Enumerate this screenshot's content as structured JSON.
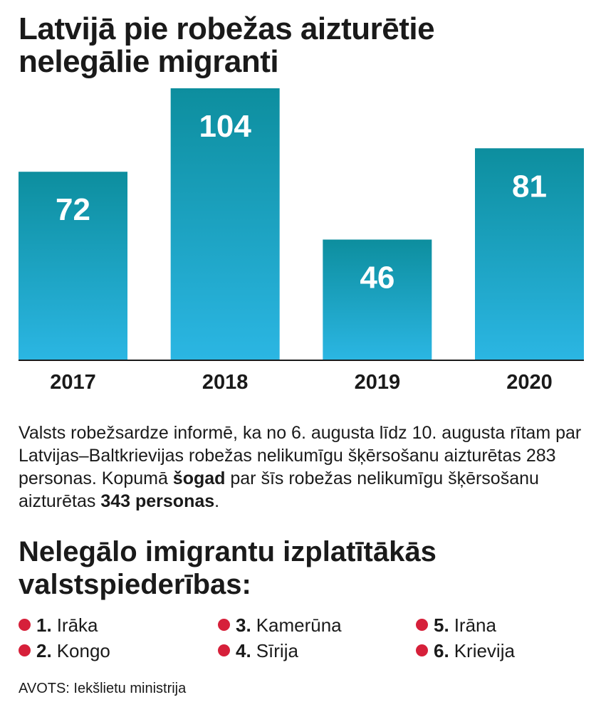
{
  "title": [
    "Latvijā pie robežas aizturētie",
    "nelegālie migranti"
  ],
  "colors": {
    "bar_top": "#0d8e9e",
    "bar_bottom": "#2bb6e3",
    "baseline": "#1a1a1a",
    "bar_label": "#ffffff",
    "dot": "#d6203a"
  },
  "chart_data": {
    "type": "bar",
    "categories": [
      "2017",
      "2018",
      "2019",
      "2020"
    ],
    "values": [
      72,
      104,
      46,
      81
    ],
    "ylim": [
      0,
      104
    ],
    "grid": false,
    "data_labels": "inside-top"
  },
  "paragraph": {
    "text_1": "Valsts robežsardze informē, ka no 6. augusta līdz 10. augusta rītam par Latvijas–Baltkrievijas robežas nelikumīgu šķērsošanu aizturētas 283 personas. Kopumā ",
    "bold_1": "šogad",
    "text_2": " par šīs robežas nelikumīgu šķērsošanu aizturētas ",
    "bold_2": "343 personas",
    "text_3": "."
  },
  "subtitle": [
    "Nelegālo imigrantu izplatītākās",
    "valstspiederības:"
  ],
  "nationalities": [
    {
      "rank": "1.",
      "name": "Irāka"
    },
    {
      "rank": "2.",
      "name": "Kongo"
    },
    {
      "rank": "3.",
      "name": "Kamerūna"
    },
    {
      "rank": "4.",
      "name": "Sīrija"
    },
    {
      "rank": "5.",
      "name": "Irāna"
    },
    {
      "rank": "6.",
      "name": "Krievija"
    }
  ],
  "source": "AVOTS: Iekšlietu ministrija"
}
